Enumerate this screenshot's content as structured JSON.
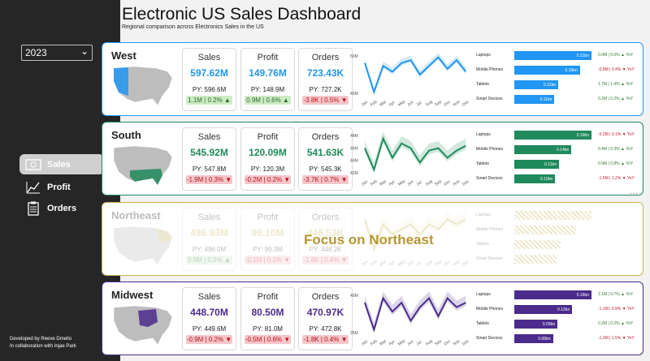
{
  "header": {
    "title": "Electronic US Sales Dashboard",
    "subtitle": "Regional comparison across Electronics Sales in the US"
  },
  "sidebar": {
    "year": "2023",
    "nav": [
      {
        "label": "Sales",
        "icon": "dollar-bill-icon",
        "active": true
      },
      {
        "label": "Profit",
        "icon": "line-chart-icon",
        "active": false
      },
      {
        "label": "Orders",
        "icon": "clipboard-icon",
        "active": false
      }
    ],
    "footer_line1": "Developed by Reeve Dmello",
    "footer_line2": "In collaboration with Injae Park"
  },
  "months": [
    "Jan",
    "Feb",
    "Mar",
    "Apr",
    "May",
    "Jun",
    "Jul",
    "Aug",
    "Sep",
    "Oct",
    "Nov",
    "Dec"
  ],
  "focus_label": "Focus on Northeast",
  "kpi_labels": {
    "sales": "Sales",
    "profit": "Profit",
    "orders": "Orders"
  },
  "regions": [
    {
      "name": "West",
      "color": "#2196f3",
      "kpis": [
        {
          "value": "597.62M",
          "py": "PY: 596.6M",
          "delta": "1.1M | 0.2% ▲",
          "trend": "pos"
        },
        {
          "value": "149.76M",
          "py": "PY: 148.9M",
          "delta": "0.9M | 0.6% ▲",
          "trend": "pos"
        },
        {
          "value": "723.43K",
          "py": "PY: 727.2K",
          "delta": "-3.8K | 0.5% ▼",
          "trend": "neg"
        }
      ],
      "y_ticks": [
        "50M",
        "40M"
      ],
      "bars": [
        {
          "cat": "Laptops",
          "label": "0.21bn",
          "frac": 1.0,
          "yoy": "0.0M | 0.0% ▲ YoY",
          "trend": "pos"
        },
        {
          "cat": "Mobile Phones",
          "label": "0.18bn",
          "frac": 0.85,
          "yoy": "-0.8M | 0.4% ▼ YoY",
          "trend": "neg"
        },
        {
          "cat": "Tablets",
          "label": "0.12bn",
          "frac": 0.57,
          "yoy": "1.7M | 1.4% ▲ YoY",
          "trend": "pos"
        },
        {
          "cat": "Smart Devices",
          "label": "0.11bn",
          "frac": 0.52,
          "yoy": "0.2M | 0.2% ▲ YoY",
          "trend": "pos"
        }
      ],
      "series": [
        50,
        40,
        49,
        47,
        50,
        51,
        46,
        49,
        52,
        48,
        51,
        47
      ]
    },
    {
      "name": "South",
      "color": "#1f8a5b",
      "kpis": [
        {
          "value": "545.92M",
          "py": "PY: 547.8M",
          "delta": "-1.9M | 0.3% ▼",
          "trend": "neg"
        },
        {
          "value": "120.09M",
          "py": "PY: 120.3M",
          "delta": "-0.2M | 0.2% ▼",
          "trend": "neg"
        },
        {
          "value": "541.63K",
          "py": "PY: 545.3K",
          "delta": "-3.7K | 0.7% ▼",
          "trend": "neg"
        }
      ],
      "y_ticks": [
        "48M",
        "46M",
        "44M",
        "42M"
      ],
      "bars": [
        {
          "cat": "Laptops",
          "label": "0.19bn",
          "frac": 1.0,
          "yoy": "-0.2M | 0.1% ▼ YoY",
          "trend": "neg"
        },
        {
          "cat": "Mobile Phones",
          "label": "0.14bn",
          "frac": 0.74,
          "yoy": "0.4M | 0.3% ▲ YoY",
          "trend": "pos"
        },
        {
          "cat": "Tablets",
          "label": "0.11bn",
          "frac": 0.58,
          "yoy": "0.9M | 0.8% ▲ YoY",
          "trend": "pos"
        },
        {
          "cat": "Smart Devices",
          "label": "0.10bn",
          "frac": 0.53,
          "yoy": "-1.5M | 1.2% ▼ YoY",
          "trend": "neg"
        }
      ],
      "series": [
        46,
        41.5,
        48,
        44,
        47,
        46,
        43,
        45.5,
        46,
        44,
        45.5,
        46.5
      ]
    },
    {
      "name": "Northeast",
      "color": "#c9b458",
      "faded": true,
      "kpis": [
        {
          "value": "496.93M",
          "py": "PY: 496.0M",
          "delta": "0.9M | 0.2% ▲",
          "trend": "pos"
        },
        {
          "value": "99.10M",
          "py": "PY: 99.3M",
          "delta": "-0.1M | 0.1% ▼",
          "trend": "neg"
        },
        {
          "value": "446.53K",
          "py": "PY: 448.2K",
          "delta": "-1.8K | 0.4% ▼",
          "trend": "neg"
        }
      ],
      "y_ticks": [
        "",
        ""
      ],
      "bars": [
        {
          "cat": "Laptops",
          "label": "",
          "frac": 1.0,
          "yoy": "",
          "trend": "pos"
        },
        {
          "cat": "Mobile Phones",
          "label": "",
          "frac": 0.8,
          "yoy": "",
          "trend": "pos"
        },
        {
          "cat": "Tablets",
          "label": "",
          "frac": 0.6,
          "yoy": "",
          "trend": "pos"
        },
        {
          "cat": "Smart Devices",
          "label": "",
          "frac": 0.55,
          "yoy": "",
          "trend": "pos"
        }
      ],
      "series": [
        42,
        36,
        41,
        39,
        40,
        41,
        39,
        41,
        40,
        42,
        41,
        42
      ]
    },
    {
      "name": "Midwest",
      "color": "#4b2b8c",
      "kpis": [
        {
          "value": "448.70M",
          "py": "PY: 449.6M",
          "delta": "-0.9M | 0.2% ▼",
          "trend": "neg"
        },
        {
          "value": "80.50M",
          "py": "PY: 81.0M",
          "delta": "-0.5M | 0.6% ▼",
          "trend": "neg"
        },
        {
          "value": "470.97K",
          "py": "PY: 472.8K",
          "delta": "-1.8K | 0.4% ▼",
          "trend": "neg"
        }
      ],
      "y_ticks": [
        "40M",
        "35M"
      ],
      "bars": [
        {
          "cat": "Laptops",
          "label": "0.16bn",
          "frac": 1.0,
          "yoy": "1.1M | 0.7% ▲ YoY",
          "trend": "pos"
        },
        {
          "cat": "Mobile Phones",
          "label": "0.12bn",
          "frac": 0.75,
          "yoy": "-1.1M | 0.9% ▼ YoY",
          "trend": "neg"
        },
        {
          "cat": "Tablets",
          "label": "0.09bn",
          "frac": 0.56,
          "yoy": "0.2M | 0.2% ▲ YoY",
          "trend": "pos"
        },
        {
          "cat": "Smart Devices",
          "label": "0.08bn",
          "frac": 0.5,
          "yoy": "-1.2M | 1.5% ▼ YoY",
          "trend": "neg"
        }
      ],
      "series": [
        39,
        33,
        40,
        37,
        39,
        35,
        38,
        40,
        36,
        40,
        38,
        39
      ]
    }
  ]
}
